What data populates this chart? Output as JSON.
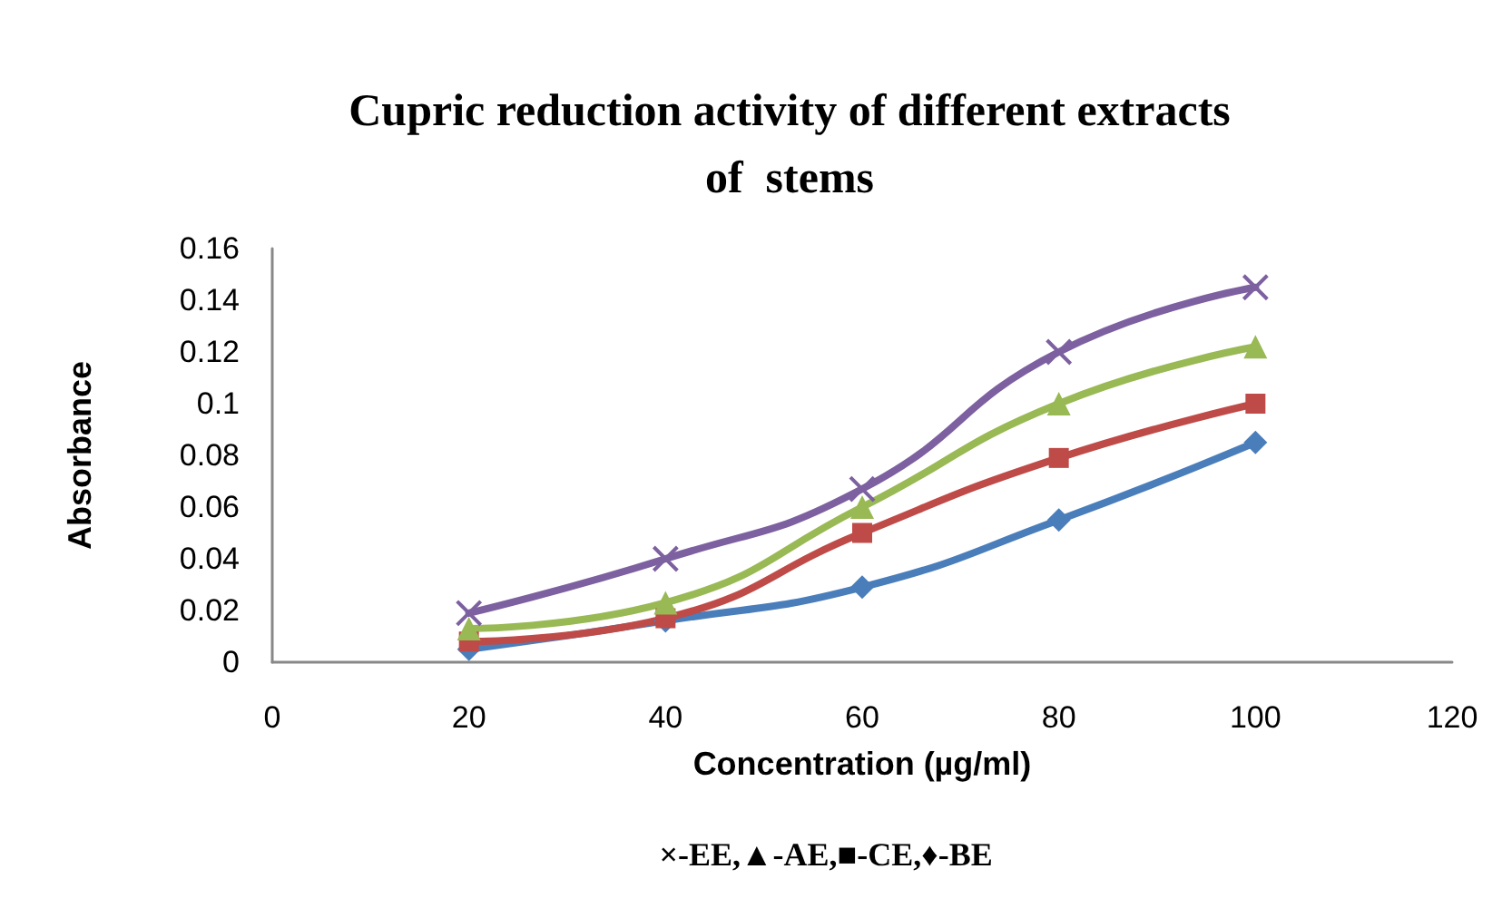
{
  "chart_data": {
    "type": "line",
    "title": "Cupric reduction activity of different extracts\nof  stems",
    "xlabel": "Concentration (µg/ml)",
    "ylabel": "Absorbance",
    "annotations": [
      "×-EE,▲-AE,■-CE,♦-BE"
    ],
    "x": [
      20,
      40,
      60,
      80,
      100
    ],
    "series": [
      {
        "color": "#4a7ebb",
        "marker": "diamond",
        "values": [
          0.005,
          0.016,
          0.029,
          0.055,
          0.085
        ]
      },
      {
        "color": "#be4b48",
        "marker": "square",
        "values": [
          0.008,
          0.017,
          0.05,
          0.079,
          0.1
        ]
      },
      {
        "color": "#98b954",
        "marker": "triangle",
        "values": [
          0.013,
          0.023,
          0.06,
          0.1,
          0.122
        ]
      },
      {
        "color": "#7d60a0",
        "marker": "cross",
        "values": [
          0.019,
          0.04,
          0.067,
          0.12,
          0.145
        ]
      }
    ],
    "xlim": [
      0,
      120
    ],
    "xticks": [
      0,
      20,
      40,
      60,
      80,
      100,
      120
    ],
    "ylim": [
      0,
      0.16
    ],
    "yticks": [
      0,
      0.02,
      0.04,
      0.06,
      0.08,
      0.1,
      0.12,
      0.14,
      0.16
    ],
    "grid": false,
    "line_style": "solid"
  }
}
